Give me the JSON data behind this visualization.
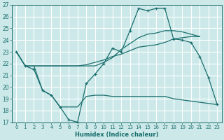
{
  "xlabel": "Humidex (Indice chaleur)",
  "bg_color": "#cce8e8",
  "grid_color": "#ffffff",
  "line_color": "#1a6e6e",
  "xlim": [
    -0.5,
    23.5
  ],
  "ylim": [
    17,
    27
  ],
  "yticks": [
    17,
    18,
    19,
    20,
    21,
    22,
    23,
    24,
    25,
    26,
    27
  ],
  "xticks": [
    0,
    1,
    2,
    3,
    4,
    5,
    6,
    7,
    8,
    9,
    10,
    11,
    12,
    13,
    14,
    15,
    16,
    17,
    18,
    19,
    20,
    21,
    22,
    23
  ],
  "series_main": {
    "x": [
      0,
      1,
      2,
      3,
      4,
      5,
      6,
      7,
      8,
      9,
      10,
      11,
      12,
      13,
      14,
      15,
      16,
      17,
      18,
      19,
      20,
      21,
      22,
      23
    ],
    "y": [
      23,
      21.8,
      21.5,
      19.7,
      19.3,
      18.3,
      17.2,
      17.0,
      20.3,
      21.1,
      22.0,
      23.3,
      23.0,
      24.8,
      26.7,
      26.5,
      26.7,
      26.7,
      24.1,
      24.0,
      23.8,
      22.6,
      20.8,
      18.5
    ]
  },
  "series_upper": {
    "x": [
      0,
      1,
      2,
      3,
      4,
      5,
      6,
      7,
      8,
      9,
      10,
      11,
      12,
      13,
      14,
      15,
      16,
      17,
      18,
      19,
      20,
      21
    ],
    "y": [
      23,
      21.8,
      21.8,
      21.8,
      21.8,
      21.8,
      21.8,
      21.8,
      21.9,
      22.1,
      22.3,
      22.6,
      22.8,
      23.1,
      23.4,
      23.5,
      23.6,
      23.8,
      24.1,
      24.2,
      24.3,
      24.3
    ]
  },
  "series_mid": {
    "x": [
      0,
      1,
      2,
      9,
      10,
      11,
      12,
      13,
      14,
      15,
      16,
      17,
      18,
      19,
      20,
      21
    ],
    "y": [
      23,
      21.8,
      21.8,
      21.8,
      22.1,
      22.5,
      23.2,
      23.7,
      24.2,
      24.5,
      24.6,
      24.8,
      24.8,
      24.7,
      24.5,
      24.3
    ]
  },
  "series_lower_seg1": {
    "x": [
      2,
      3,
      4,
      5
    ],
    "y": [
      21.8,
      19.7,
      19.3,
      18.3
    ]
  },
  "series_lower_seg2": {
    "x": [
      5,
      6,
      7,
      8,
      9,
      10,
      11,
      12,
      13,
      14,
      15,
      16,
      17,
      18,
      19,
      20,
      21,
      22,
      23
    ],
    "y": [
      18.3,
      18.3,
      18.3,
      19.2,
      19.3,
      19.3,
      19.2,
      19.2,
      19.2,
      19.2,
      19.2,
      19.2,
      19.2,
      19.0,
      18.9,
      18.8,
      18.7,
      18.6,
      18.5
    ]
  }
}
